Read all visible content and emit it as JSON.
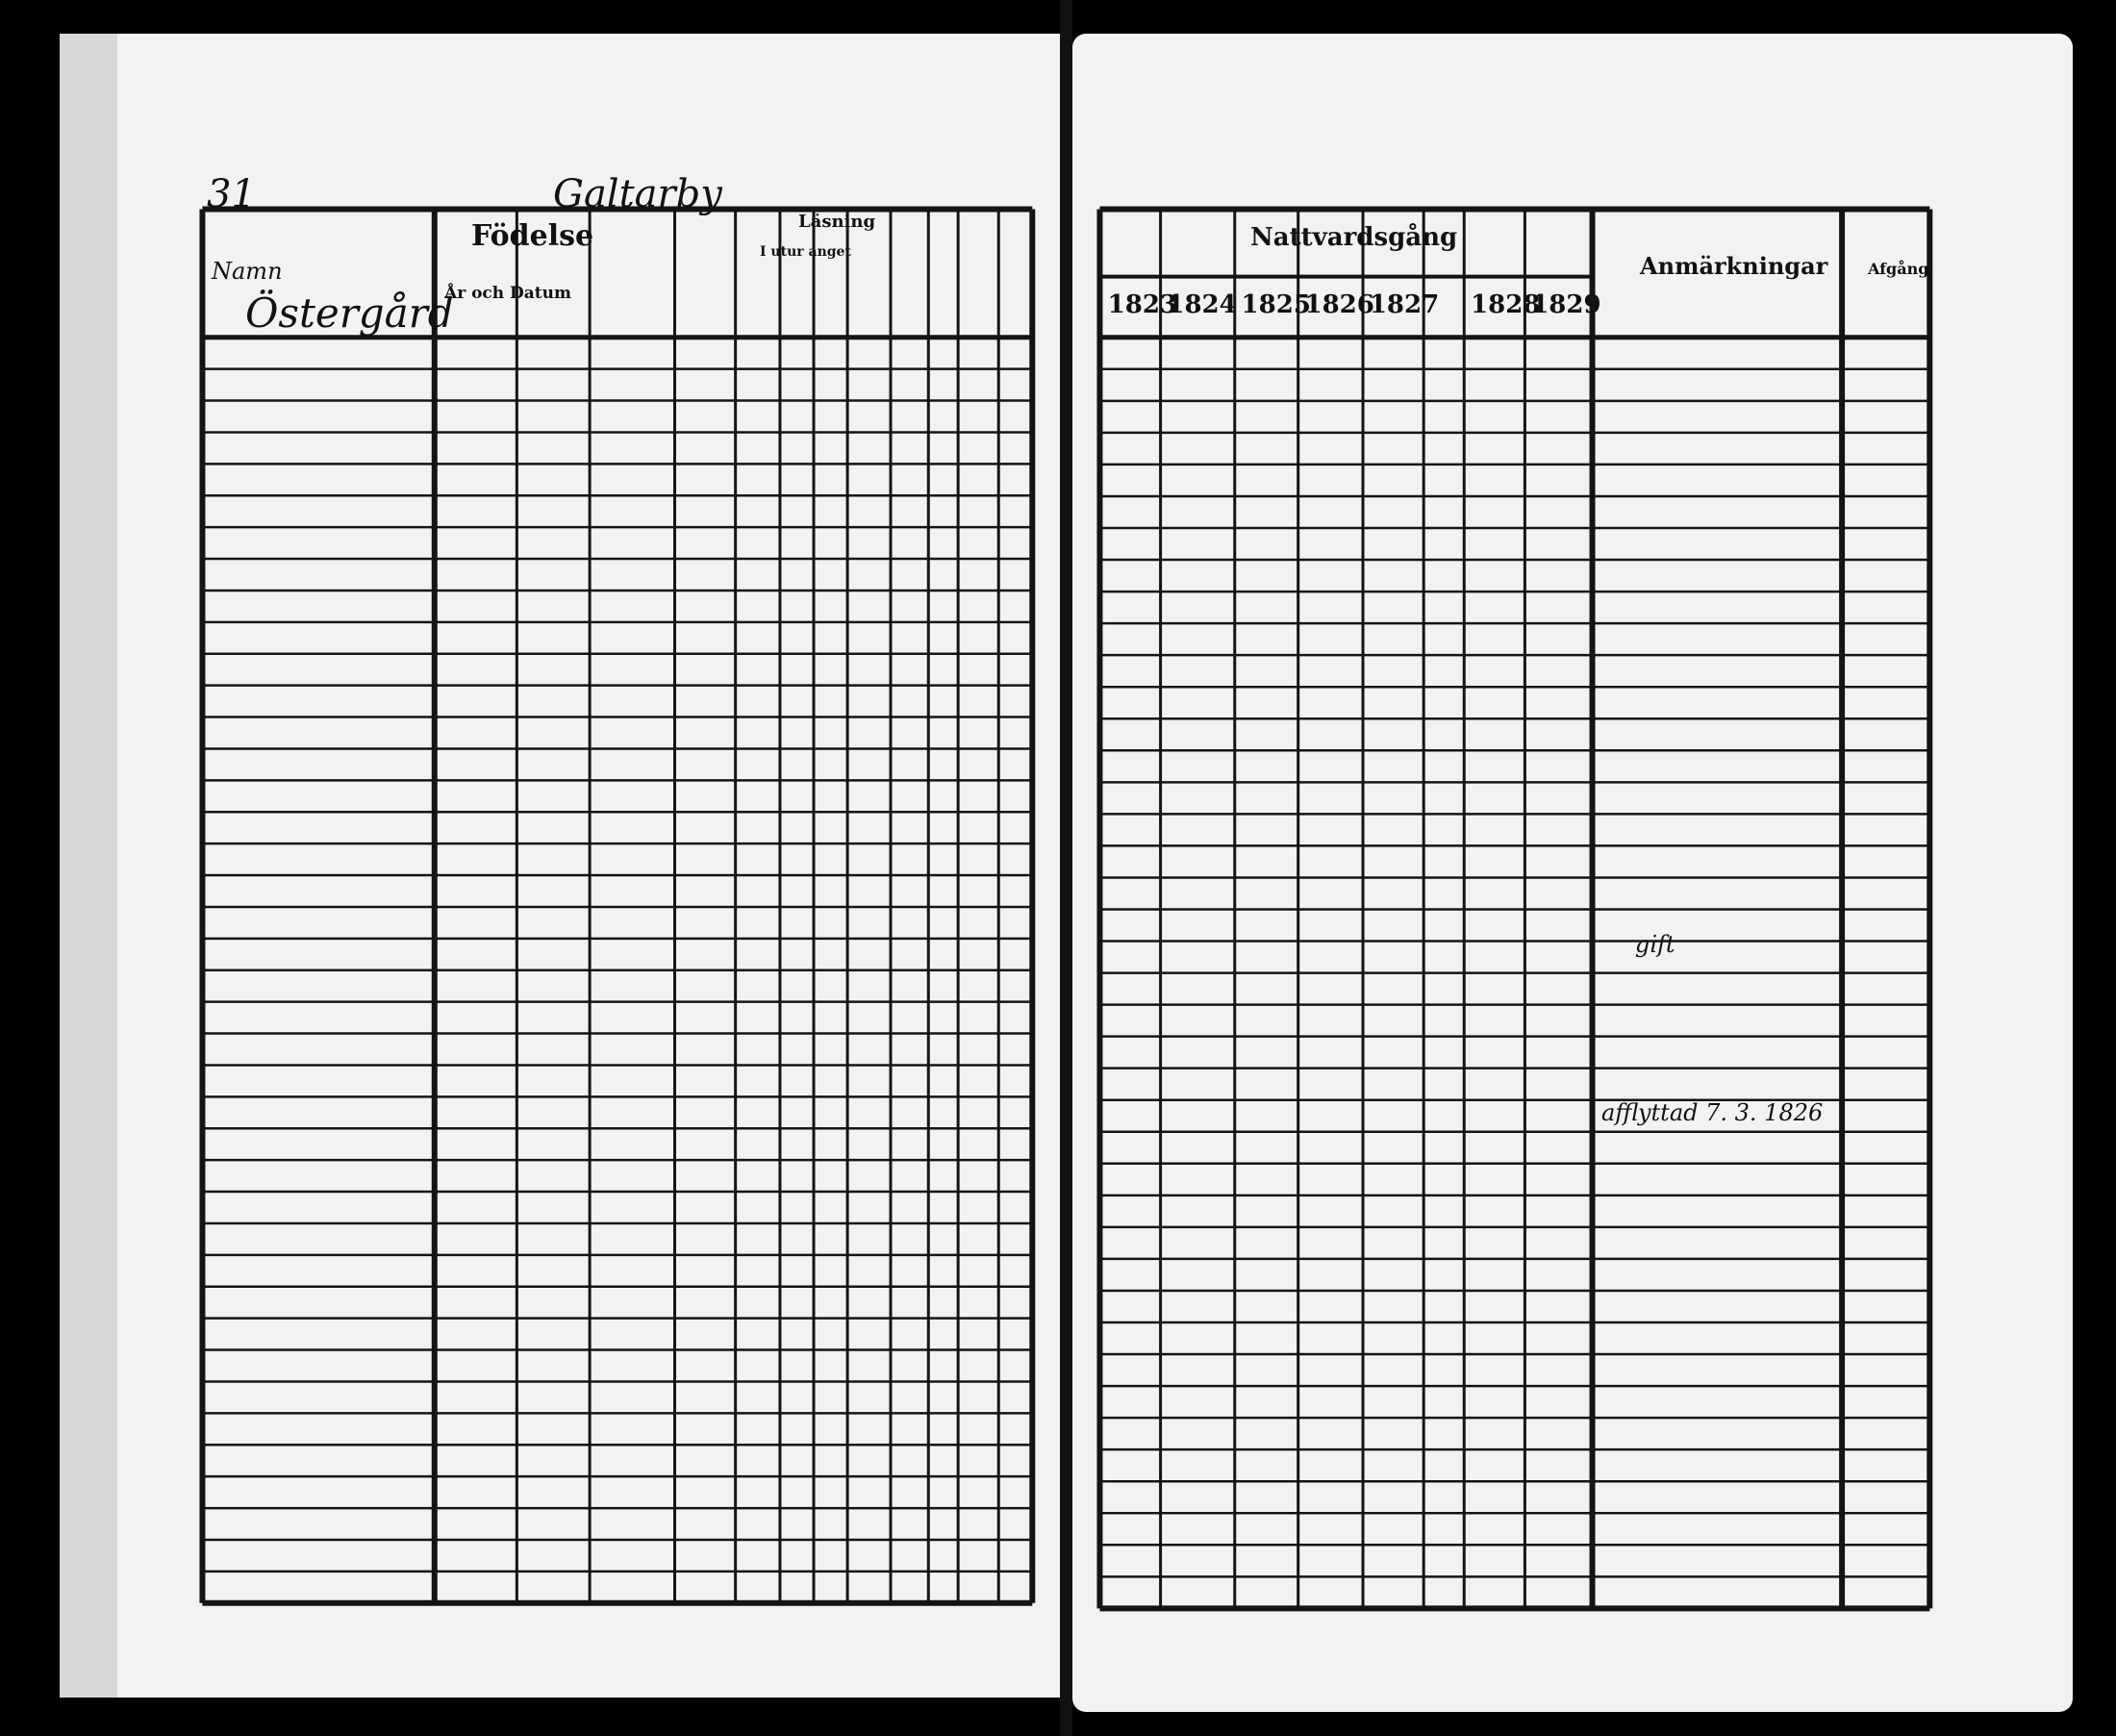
{
  "document": {
    "page_number": "31",
    "parish_heading": "Galtarby",
    "left_page": {
      "headers": {
        "names": "Namn",
        "farm": "Östergård",
        "birth": "Födelse",
        "year_date": "År och Datum",
        "reading": "Läsning",
        "reading_sub": "I utur anget"
      }
    },
    "right_page": {
      "headers": {
        "communion": "Nattvardsgång",
        "remarks": "Anmärkningar",
        "departure": "Afgång"
      },
      "years": [
        "1823",
        "1824",
        "1825",
        "1826",
        "1827",
        "1828",
        "1829"
      ],
      "annotations": [
        "afflyttad 7. 3. 1826",
        "gift"
      ]
    }
  }
}
